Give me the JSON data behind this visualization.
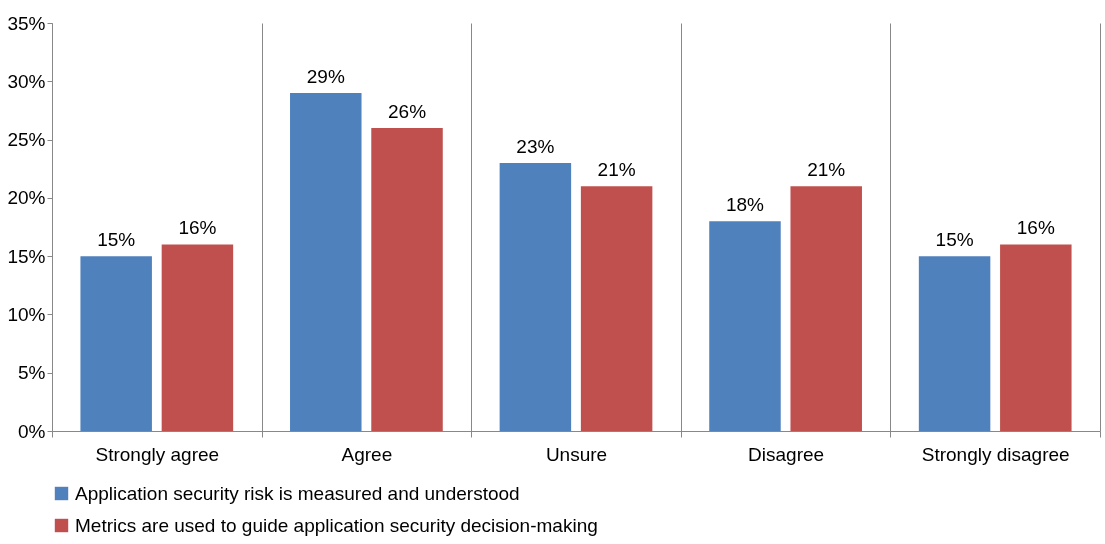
{
  "chart_data": {
    "type": "bar",
    "categories": [
      "Strongly agree",
      "Agree",
      "Unsure",
      "Disagree",
      "Strongly disagree"
    ],
    "series": [
      {
        "name": "Application security risk is measured and understood",
        "color": "#4f81bd",
        "values": [
          15,
          29,
          23,
          18,
          15
        ],
        "value_labels": [
          "15%",
          "29%",
          "23%",
          "18%",
          "15%"
        ]
      },
      {
        "name": "Metrics are used to guide application security decision-making",
        "color": "#c0504d",
        "values": [
          16,
          26,
          21,
          21,
          16
        ],
        "value_labels": [
          "16%",
          "26%",
          "21%",
          "21%",
          "16%"
        ]
      }
    ],
    "ylim": [
      0,
      35
    ],
    "yticks": [
      {
        "value": 0,
        "label": "0%"
      },
      {
        "value": 5,
        "label": "5%"
      },
      {
        "value": 10,
        "label": "10%"
      },
      {
        "value": 15,
        "label": "15%"
      },
      {
        "value": 20,
        "label": "20%"
      },
      {
        "value": 25,
        "label": "25%"
      },
      {
        "value": 30,
        "label": "30%"
      },
      {
        "value": 35,
        "label": "35%"
      }
    ],
    "grid": "x",
    "legend": "bottom"
  }
}
